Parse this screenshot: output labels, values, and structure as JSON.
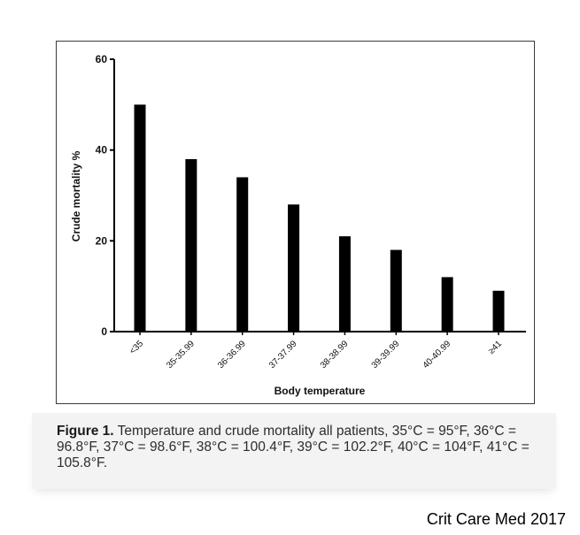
{
  "chart_data": {
    "type": "bar",
    "categories": [
      "<35",
      "35-35.99",
      "36-36.99",
      "37-37.99",
      "38-38.99",
      "39-39.99",
      "40-40.99",
      "≥41"
    ],
    "values": [
      50,
      38,
      34,
      28,
      21,
      18,
      12,
      9
    ],
    "xlabel": "Body temperature",
    "ylabel": "Crude mortality %",
    "ylim": [
      0,
      60
    ],
    "yticks": [
      0,
      20,
      40,
      60
    ],
    "grid": false,
    "bar_color": "#000000"
  },
  "caption": {
    "label": "Figure 1.",
    "text": " Temperature and crude mortality all patients, 35°C = 95°F, 36°C = 96.8°F, 37°C = 98.6°F, 38°C = 100.4°F, 39°C = 102.2°F, 40°C = 104°F, 41°C = 105.8°F."
  },
  "source": "Crit Care Med 2017"
}
